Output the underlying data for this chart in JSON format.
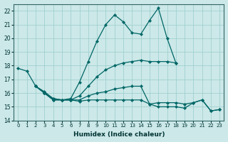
{
  "xlabel": "Humidex (Indice chaleur)",
  "xlim": [
    -0.5,
    23.5
  ],
  "ylim": [
    14,
    22.5
  ],
  "yticks": [
    14,
    15,
    16,
    17,
    18,
    19,
    20,
    21,
    22
  ],
  "xticks": [
    0,
    1,
    2,
    3,
    4,
    5,
    6,
    7,
    8,
    9,
    10,
    11,
    12,
    13,
    14,
    15,
    16,
    17,
    18,
    19,
    20,
    21,
    22,
    23
  ],
  "bg_color": "#cce8e8",
  "line_color": "#006666",
  "grid_color": "#99cccc",
  "lines": [
    {
      "x": [
        0,
        1,
        2,
        3,
        4,
        5,
        6,
        7,
        8,
        9,
        10,
        11,
        12,
        13,
        14,
        15,
        16,
        17,
        18
      ],
      "y": [
        17.8,
        17.6,
        16.5,
        16.0,
        15.5,
        15.5,
        15.6,
        16.8,
        18.3,
        19.8,
        21.0,
        21.7,
        21.2,
        20.4,
        20.3,
        21.3,
        22.2,
        20.0,
        18.2
      ]
    },
    {
      "x": [
        2,
        3,
        4,
        5,
        6,
        7,
        8,
        9,
        10,
        11,
        12,
        13,
        14,
        15,
        16,
        17,
        18
      ],
      "y": [
        16.5,
        16.0,
        15.5,
        15.5,
        15.5,
        15.8,
        16.5,
        17.2,
        17.7,
        18.0,
        18.2,
        18.3,
        18.4,
        18.3,
        18.3,
        18.3,
        18.2
      ]
    },
    {
      "x": [
        2,
        3,
        4,
        5,
        6,
        7,
        8,
        9,
        10,
        11,
        12,
        13,
        14,
        15,
        16,
        17,
        18,
        19,
        20,
        21,
        22,
        23
      ],
      "y": [
        16.5,
        16.0,
        15.6,
        15.5,
        15.5,
        15.5,
        15.8,
        16.0,
        16.1,
        16.3,
        16.4,
        16.5,
        16.5,
        15.2,
        15.3,
        15.3,
        15.3,
        15.2,
        15.3,
        15.5,
        14.7,
        14.8
      ]
    },
    {
      "x": [
        2,
        3,
        4,
        5,
        6,
        7,
        8,
        9,
        10,
        11,
        12,
        13,
        14,
        15,
        16,
        17,
        18,
        19,
        20,
        21,
        22,
        23
      ],
      "y": [
        16.5,
        16.1,
        15.6,
        15.5,
        15.5,
        15.4,
        15.5,
        15.5,
        15.5,
        15.5,
        15.5,
        15.5,
        15.5,
        15.2,
        15.0,
        15.0,
        15.0,
        14.9,
        15.3,
        15.5,
        14.7,
        14.8
      ]
    }
  ]
}
